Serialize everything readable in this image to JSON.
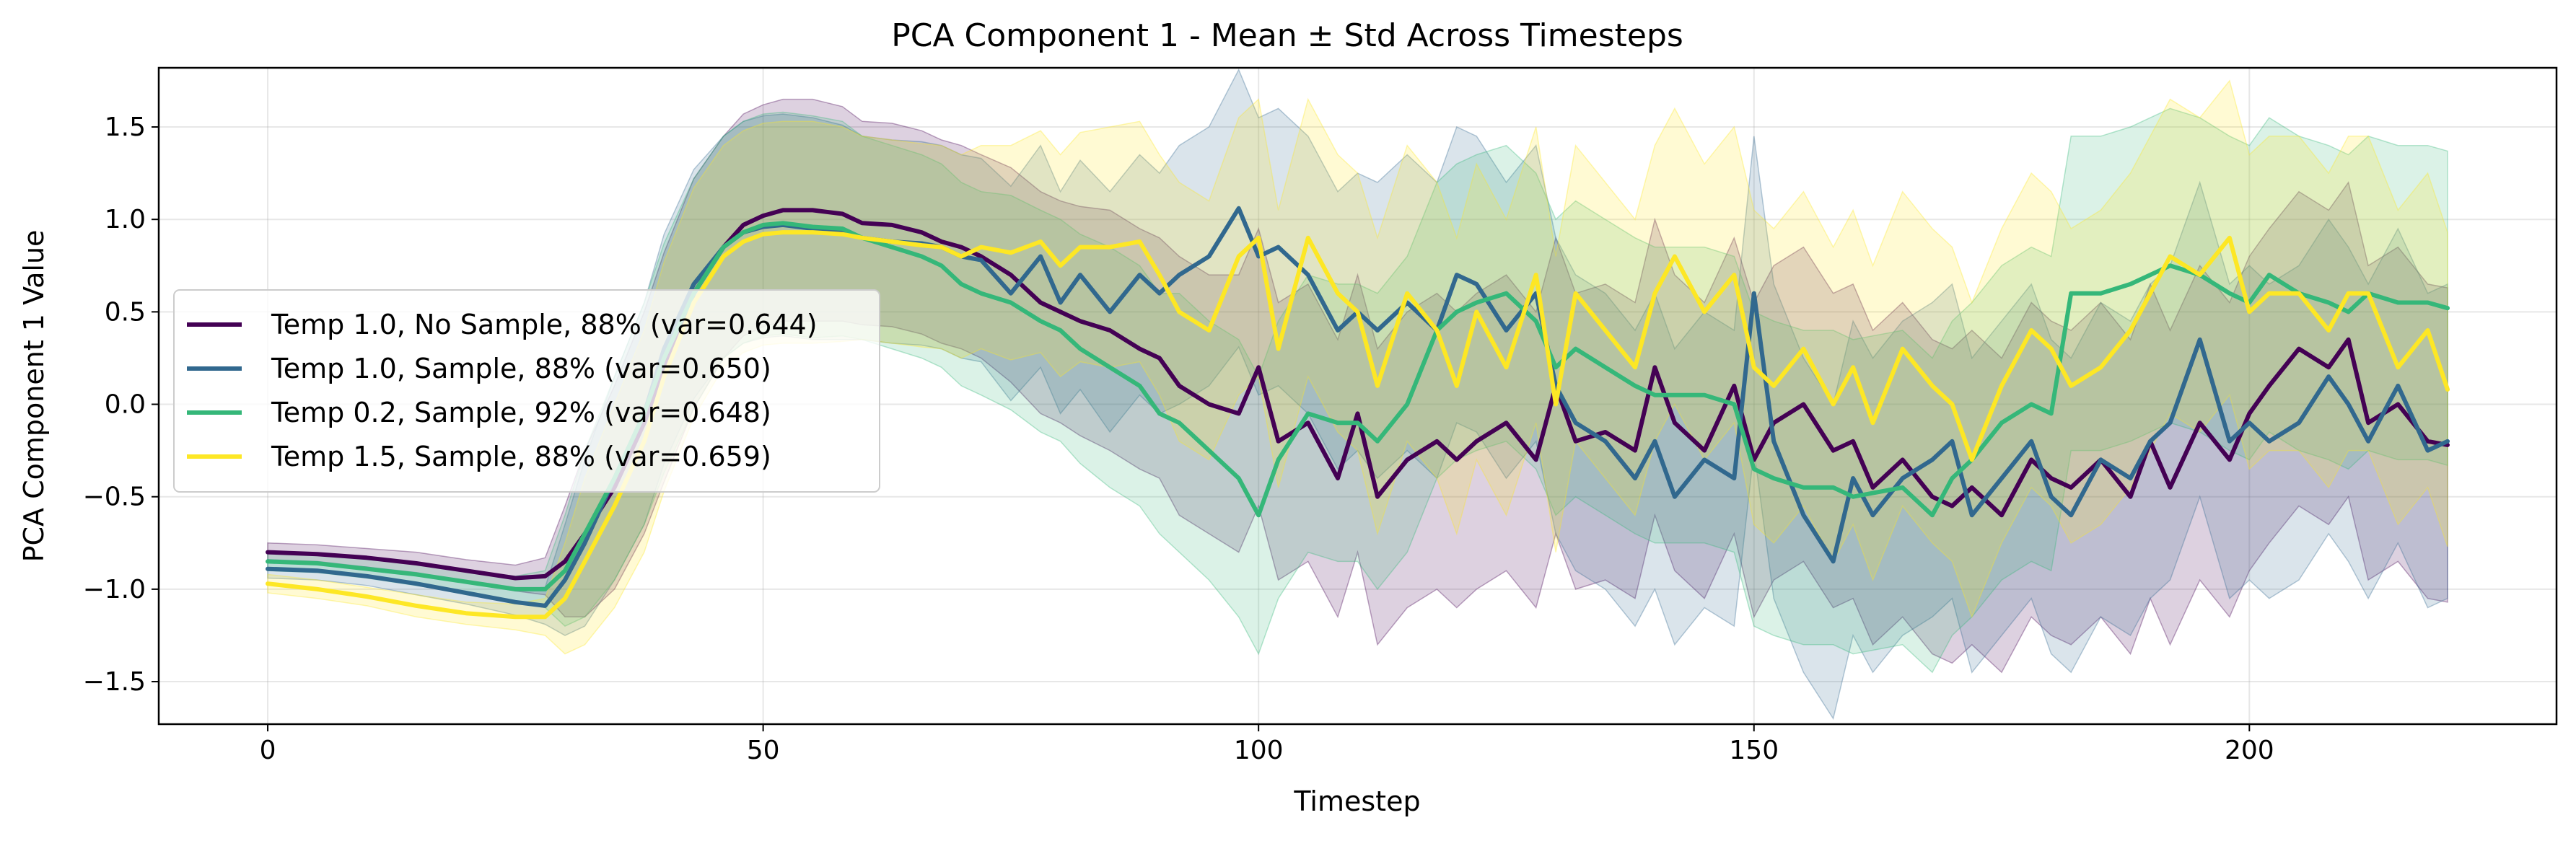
{
  "chart_data": {
    "type": "line",
    "title": "PCA Component 1 - Mean ± Std Across Timesteps",
    "xlabel": "Timestep",
    "ylabel": "PCA Component 1 Value",
    "xlim": [
      -11,
      231
    ],
    "ylim": [
      -1.73,
      1.82
    ],
    "grid": true,
    "legend_position": "center-left",
    "x_ticks": [
      {
        "value": 0,
        "label": "0"
      },
      {
        "value": 50,
        "label": "50"
      },
      {
        "value": 100,
        "label": "100"
      },
      {
        "value": 150,
        "label": "150"
      },
      {
        "value": 200,
        "label": "200"
      }
    ],
    "y_ticks": [
      {
        "value": -1.5,
        "label": "−1.5"
      },
      {
        "value": -1.0,
        "label": "−1.0"
      },
      {
        "value": -0.5,
        "label": "−0.5"
      },
      {
        "value": 0.0,
        "label": "0.0"
      },
      {
        "value": 0.5,
        "label": "0.5"
      },
      {
        "value": 1.0,
        "label": "1.0"
      },
      {
        "value": 1.5,
        "label": "1.5"
      }
    ],
    "series": [
      {
        "name": "Temp 1.0, No Sample, 88% (var=0.644)",
        "color": "#440154",
        "band_opacity": 0.18,
        "x": [
          0,
          5,
          10,
          15,
          20,
          25,
          28,
          30,
          32,
          35,
          38,
          40,
          43,
          46,
          48,
          50,
          52,
          55,
          58,
          60,
          63,
          66,
          68,
          70,
          72,
          75,
          78,
          80,
          82,
          85,
          88,
          90,
          92,
          95,
          98,
          100,
          102,
          105,
          108,
          110,
          112,
          115,
          118,
          120,
          122,
          125,
          128,
          130,
          132,
          135,
          138,
          140,
          142,
          145,
          148,
          150,
          152,
          155,
          158,
          160,
          162,
          165,
          168,
          170,
          172,
          175,
          178,
          180,
          182,
          185,
          188,
          190,
          192,
          195,
          198,
          200,
          202,
          205,
          208,
          210,
          212,
          215,
          218,
          220
        ],
        "mean": [
          -0.8,
          -0.81,
          -0.83,
          -0.86,
          -0.9,
          -0.94,
          -0.93,
          -0.85,
          -0.7,
          -0.45,
          -0.1,
          0.2,
          0.6,
          0.85,
          0.97,
          1.02,
          1.05,
          1.05,
          1.03,
          0.98,
          0.97,
          0.93,
          0.88,
          0.85,
          0.8,
          0.7,
          0.55,
          0.5,
          0.45,
          0.4,
          0.3,
          0.25,
          0.1,
          0.0,
          -0.05,
          0.2,
          -0.2,
          -0.1,
          -0.4,
          -0.05,
          -0.5,
          -0.3,
          -0.2,
          -0.3,
          -0.2,
          -0.1,
          -0.3,
          0.1,
          -0.2,
          -0.15,
          -0.25,
          0.2,
          -0.1,
          -0.25,
          0.1,
          -0.3,
          -0.1,
          0.0,
          -0.25,
          -0.2,
          -0.45,
          -0.3,
          -0.5,
          -0.55,
          -0.45,
          -0.6,
          -0.3,
          -0.4,
          -0.45,
          -0.3,
          -0.5,
          -0.2,
          -0.45,
          -0.1,
          -0.3,
          -0.05,
          0.1,
          0.3,
          0.2,
          0.35,
          -0.1,
          0.0,
          -0.2,
          -0.22
        ],
        "std": [
          0.05,
          0.05,
          0.05,
          0.06,
          0.06,
          0.07,
          0.1,
          0.3,
          0.45,
          0.55,
          0.6,
          0.62,
          0.62,
          0.6,
          0.6,
          0.6,
          0.6,
          0.6,
          0.58,
          0.55,
          0.55,
          0.55,
          0.55,
          0.55,
          0.55,
          0.58,
          0.6,
          0.6,
          0.62,
          0.65,
          0.65,
          0.65,
          0.7,
          0.7,
          0.75,
          0.75,
          0.75,
          0.75,
          0.75,
          0.75,
          0.8,
          0.8,
          0.8,
          0.8,
          0.8,
          0.8,
          0.8,
          0.8,
          0.8,
          0.8,
          0.8,
          0.8,
          0.8,
          0.8,
          0.8,
          0.85,
          0.85,
          0.85,
          0.85,
          0.85,
          0.85,
          0.85,
          0.85,
          0.85,
          0.85,
          0.85,
          0.85,
          0.85,
          0.85,
          0.85,
          0.85,
          0.85,
          0.85,
          0.85,
          0.85,
          0.85,
          0.85,
          0.85,
          0.85,
          0.85,
          0.85,
          0.85,
          0.85,
          0.85
        ]
      },
      {
        "name": "Temp 1.0, Sample, 88% (var=0.650)",
        "color": "#31688e",
        "band_opacity": 0.18,
        "x": [
          0,
          5,
          10,
          15,
          20,
          25,
          28,
          30,
          32,
          35,
          38,
          40,
          43,
          46,
          48,
          50,
          52,
          55,
          58,
          60,
          63,
          66,
          68,
          70,
          72,
          75,
          78,
          80,
          82,
          85,
          88,
          90,
          92,
          95,
          98,
          100,
          102,
          105,
          108,
          110,
          112,
          115,
          118,
          120,
          122,
          125,
          128,
          130,
          132,
          135,
          138,
          140,
          142,
          145,
          148,
          150,
          152,
          155,
          158,
          160,
          162,
          165,
          168,
          170,
          172,
          175,
          178,
          180,
          182,
          185,
          188,
          190,
          192,
          195,
          198,
          200,
          202,
          205,
          208,
          210,
          212,
          215,
          218,
          220
        ],
        "mean": [
          -0.89,
          -0.9,
          -0.93,
          -0.97,
          -1.02,
          -1.07,
          -1.09,
          -0.95,
          -0.75,
          -0.4,
          -0.05,
          0.3,
          0.65,
          0.85,
          0.93,
          0.96,
          0.97,
          0.95,
          0.93,
          0.9,
          0.88,
          0.87,
          0.85,
          0.8,
          0.78,
          0.6,
          0.8,
          0.55,
          0.7,
          0.5,
          0.7,
          0.6,
          0.7,
          0.8,
          1.06,
          0.8,
          0.85,
          0.7,
          0.4,
          0.5,
          0.4,
          0.55,
          0.4,
          0.7,
          0.65,
          0.4,
          0.6,
          0.1,
          -0.1,
          -0.2,
          -0.4,
          -0.2,
          -0.5,
          -0.3,
          -0.4,
          0.6,
          -0.2,
          -0.6,
          -0.85,
          -0.4,
          -0.6,
          -0.4,
          -0.3,
          -0.2,
          -0.6,
          -0.4,
          -0.2,
          -0.5,
          -0.6,
          -0.3,
          -0.4,
          -0.2,
          -0.1,
          0.35,
          -0.2,
          -0.1,
          -0.2,
          -0.1,
          0.15,
          0.0,
          -0.2,
          0.1,
          -0.25,
          -0.2
        ],
        "std": [
          0.05,
          0.05,
          0.05,
          0.06,
          0.06,
          0.07,
          0.1,
          0.3,
          0.45,
          0.55,
          0.6,
          0.62,
          0.62,
          0.6,
          0.6,
          0.6,
          0.6,
          0.6,
          0.58,
          0.55,
          0.55,
          0.55,
          0.55,
          0.55,
          0.55,
          0.58,
          0.6,
          0.6,
          0.62,
          0.65,
          0.65,
          0.65,
          0.7,
          0.7,
          0.75,
          0.75,
          0.75,
          0.75,
          0.75,
          0.75,
          0.8,
          0.8,
          0.8,
          0.8,
          0.8,
          0.8,
          0.8,
          0.8,
          0.8,
          0.8,
          0.8,
          0.8,
          0.8,
          0.8,
          0.8,
          0.85,
          0.85,
          0.85,
          0.85,
          0.85,
          0.85,
          0.85,
          0.85,
          0.85,
          0.85,
          0.85,
          0.85,
          0.85,
          0.85,
          0.85,
          0.85,
          0.85,
          0.85,
          0.85,
          0.85,
          0.85,
          0.85,
          0.85,
          0.85,
          0.85,
          0.85,
          0.85,
          0.85,
          0.85
        ]
      },
      {
        "name": "Temp 0.2, Sample, 92% (var=0.648)",
        "color": "#35b779",
        "band_opacity": 0.18,
        "x": [
          0,
          5,
          10,
          15,
          20,
          25,
          28,
          30,
          32,
          35,
          38,
          40,
          43,
          46,
          48,
          50,
          52,
          55,
          58,
          60,
          63,
          66,
          68,
          70,
          72,
          75,
          78,
          80,
          82,
          85,
          88,
          90,
          92,
          95,
          98,
          100,
          102,
          105,
          108,
          110,
          112,
          115,
          118,
          120,
          122,
          125,
          128,
          130,
          132,
          135,
          138,
          140,
          142,
          145,
          148,
          150,
          152,
          155,
          158,
          160,
          162,
          165,
          168,
          170,
          172,
          175,
          178,
          180,
          182,
          185,
          188,
          190,
          192,
          195,
          198,
          200,
          202,
          205,
          208,
          210,
          212,
          215,
          218,
          220
        ],
        "mean": [
          -0.85,
          -0.86,
          -0.89,
          -0.92,
          -0.96,
          -1.0,
          -1.0,
          -0.9,
          -0.7,
          -0.4,
          -0.05,
          0.25,
          0.6,
          0.85,
          0.93,
          0.97,
          0.98,
          0.96,
          0.95,
          0.9,
          0.85,
          0.8,
          0.75,
          0.65,
          0.6,
          0.55,
          0.45,
          0.4,
          0.3,
          0.2,
          0.1,
          -0.05,
          -0.1,
          -0.25,
          -0.4,
          -0.6,
          -0.3,
          -0.05,
          -0.1,
          -0.1,
          -0.2,
          0.0,
          0.4,
          0.5,
          0.55,
          0.6,
          0.45,
          0.2,
          0.3,
          0.2,
          0.1,
          0.05,
          0.05,
          0.05,
          0.0,
          -0.35,
          -0.4,
          -0.45,
          -0.45,
          -0.5,
          -0.48,
          -0.45,
          -0.6,
          -0.4,
          -0.3,
          -0.1,
          0.0,
          -0.05,
          0.6,
          0.6,
          0.65,
          0.7,
          0.75,
          0.7,
          0.6,
          0.55,
          0.7,
          0.6,
          0.55,
          0.5,
          0.6,
          0.55,
          0.55,
          0.52
        ],
        "std": [
          0.05,
          0.05,
          0.05,
          0.06,
          0.06,
          0.07,
          0.1,
          0.3,
          0.45,
          0.55,
          0.6,
          0.62,
          0.62,
          0.6,
          0.6,
          0.6,
          0.6,
          0.6,
          0.58,
          0.55,
          0.55,
          0.55,
          0.55,
          0.55,
          0.55,
          0.58,
          0.6,
          0.6,
          0.62,
          0.65,
          0.65,
          0.65,
          0.7,
          0.7,
          0.75,
          0.75,
          0.75,
          0.75,
          0.75,
          0.75,
          0.8,
          0.8,
          0.8,
          0.8,
          0.8,
          0.8,
          0.8,
          0.8,
          0.8,
          0.8,
          0.8,
          0.8,
          0.8,
          0.8,
          0.8,
          0.85,
          0.85,
          0.85,
          0.85,
          0.85,
          0.85,
          0.85,
          0.85,
          0.85,
          0.85,
          0.85,
          0.85,
          0.85,
          0.85,
          0.85,
          0.85,
          0.85,
          0.85,
          0.85,
          0.85,
          0.85,
          0.85,
          0.85,
          0.85,
          0.85,
          0.85,
          0.85,
          0.85,
          0.85
        ]
      },
      {
        "name": "Temp 1.5, Sample, 88% (var=0.659)",
        "color": "#fde725",
        "band_opacity": 0.2,
        "x": [
          0,
          5,
          10,
          15,
          20,
          25,
          28,
          30,
          32,
          35,
          38,
          40,
          43,
          46,
          48,
          50,
          52,
          55,
          58,
          60,
          63,
          66,
          68,
          70,
          72,
          75,
          78,
          80,
          82,
          85,
          88,
          90,
          92,
          95,
          98,
          100,
          102,
          105,
          108,
          110,
          112,
          115,
          118,
          120,
          122,
          125,
          128,
          130,
          132,
          135,
          138,
          140,
          142,
          145,
          148,
          150,
          152,
          155,
          158,
          160,
          162,
          165,
          168,
          170,
          172,
          175,
          178,
          180,
          182,
          185,
          188,
          190,
          192,
          195,
          198,
          200,
          202,
          205,
          208,
          210,
          212,
          215,
          218,
          220
        ],
        "mean": [
          -0.97,
          -1.0,
          -1.04,
          -1.09,
          -1.13,
          -1.15,
          -1.15,
          -1.05,
          -0.85,
          -0.55,
          -0.2,
          0.15,
          0.55,
          0.8,
          0.88,
          0.92,
          0.93,
          0.93,
          0.92,
          0.9,
          0.88,
          0.86,
          0.85,
          0.8,
          0.85,
          0.82,
          0.88,
          0.75,
          0.85,
          0.85,
          0.88,
          0.7,
          0.5,
          0.4,
          0.8,
          0.9,
          0.3,
          0.9,
          0.6,
          0.5,
          0.1,
          0.6,
          0.4,
          0.1,
          0.5,
          0.2,
          0.7,
          0.0,
          0.6,
          0.4,
          0.2,
          0.6,
          0.8,
          0.5,
          0.7,
          0.2,
          0.1,
          0.3,
          0.0,
          0.2,
          -0.1,
          0.3,
          0.1,
          0.0,
          -0.3,
          0.1,
          0.4,
          0.3,
          0.1,
          0.2,
          0.4,
          0.6,
          0.8,
          0.7,
          0.9,
          0.5,
          0.6,
          0.6,
          0.4,
          0.6,
          0.6,
          0.2,
          0.4,
          0.08
        ],
        "std": [
          0.05,
          0.05,
          0.05,
          0.06,
          0.06,
          0.07,
          0.1,
          0.3,
          0.45,
          0.55,
          0.6,
          0.62,
          0.62,
          0.6,
          0.6,
          0.6,
          0.6,
          0.6,
          0.58,
          0.55,
          0.55,
          0.55,
          0.55,
          0.55,
          0.55,
          0.58,
          0.6,
          0.6,
          0.62,
          0.65,
          0.65,
          0.65,
          0.7,
          0.7,
          0.75,
          0.75,
          0.75,
          0.75,
          0.75,
          0.75,
          0.8,
          0.8,
          0.8,
          0.8,
          0.8,
          0.8,
          0.8,
          0.8,
          0.8,
          0.8,
          0.8,
          0.8,
          0.8,
          0.8,
          0.8,
          0.85,
          0.85,
          0.85,
          0.85,
          0.85,
          0.85,
          0.85,
          0.85,
          0.85,
          0.85,
          0.85,
          0.85,
          0.85,
          0.85,
          0.85,
          0.85,
          0.85,
          0.85,
          0.85,
          0.85,
          0.85,
          0.85,
          0.85,
          0.85,
          0.85,
          0.85,
          0.85,
          0.85,
          0.85
        ]
      }
    ]
  }
}
